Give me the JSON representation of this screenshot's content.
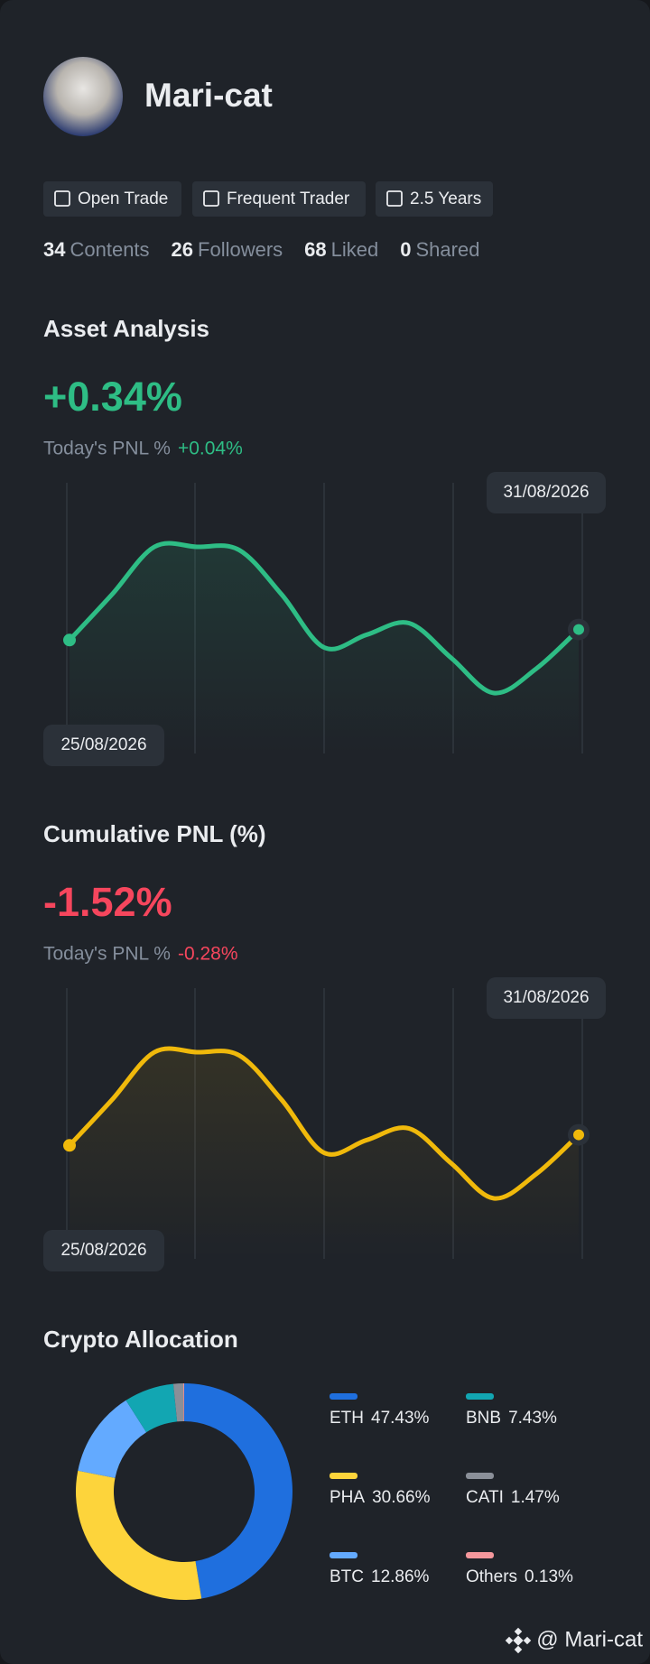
{
  "profile": {
    "name": "Mari-cat",
    "tags": [
      "Open Trade",
      "Frequent Trader",
      "2.5 Years"
    ],
    "stats": [
      {
        "value": 34,
        "label": "Contents"
      },
      {
        "value": 26,
        "label": "Followers"
      },
      {
        "value": 68,
        "label": "Liked"
      },
      {
        "value": 0,
        "label": "Shared"
      }
    ]
  },
  "asset_analysis": {
    "title": "Asset Analysis",
    "value": "+0.34%",
    "today_label": "Today's PNL %",
    "today_value": "+0.04%",
    "start_date": "25/08/2026",
    "end_date": "31/08/2026",
    "color": "#2ebd85",
    "values": [
      97,
      140,
      185,
      185,
      182,
      140,
      90,
      102,
      113,
      80,
      47,
      70,
      107
    ]
  },
  "cumulative_pnl": {
    "title": "Cumulative PNL (%)",
    "value": "-1.52%",
    "today_label": "Today's PNL %",
    "today_value": "-0.28%",
    "start_date": "25/08/2026",
    "end_date": "31/08/2026",
    "color": "#f0b90b",
    "values": [
      97,
      140,
      185,
      185,
      182,
      140,
      90,
      102,
      113,
      80,
      47,
      70,
      107
    ]
  },
  "allocation": {
    "type": "pie",
    "title": "Crypto Allocation",
    "categories": [
      "ETH",
      "PHA",
      "BTC",
      "BNB",
      "CATI",
      "Others"
    ],
    "values": [
      47.43,
      30.66,
      12.86,
      7.43,
      1.47,
      0.13
    ],
    "value_labels": [
      "47.43%",
      "30.66%",
      "12.86%",
      "7.43%",
      "1.47%",
      "0.13%"
    ],
    "colors": [
      "#1f6fde",
      "#fdd43b",
      "#63aaff",
      "#12a6b2",
      "#8a8f98",
      "#f4979c"
    ]
  },
  "footer": "@ Mari-cat"
}
